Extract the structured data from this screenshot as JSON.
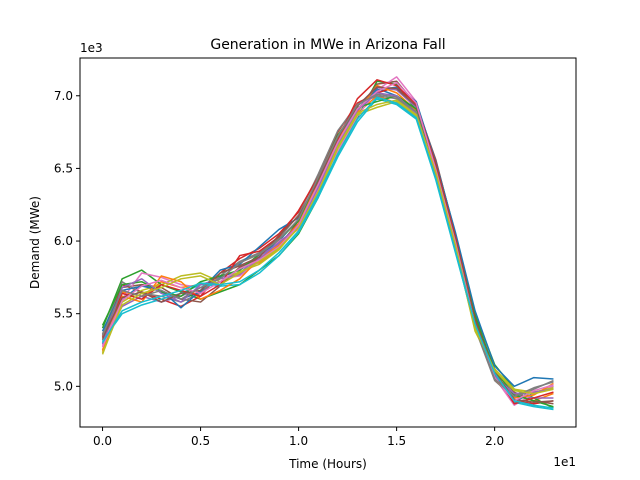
{
  "chart_data": {
    "type": "line",
    "title": "Generation in MWe in Arizona Fall",
    "xlabel": "Time (Hours)",
    "ylabel": "Demand (MWe)",
    "x_offset_label": "1e1",
    "y_offset_label": "1e3",
    "x_ticks": [
      0,
      5,
      10,
      15,
      20
    ],
    "x_tick_labels": [
      "0.0",
      "0.5",
      "1.0",
      "1.5",
      "2.0"
    ],
    "y_ticks": [
      5000,
      5500,
      6000,
      6500,
      7000
    ],
    "y_tick_labels": [
      "5.0",
      "5.5",
      "6.0",
      "6.5",
      "7.0"
    ],
    "xlim": [
      -1.15,
      24.15
    ],
    "ylim": [
      4720,
      7260
    ],
    "grid": false,
    "legend": "none",
    "x": [
      0,
      1,
      2,
      3,
      4,
      5,
      6,
      7,
      8,
      9,
      10,
      11,
      12,
      13,
      14,
      15,
      16,
      17,
      18,
      19,
      20,
      21,
      22,
      23
    ],
    "series": [
      {
        "color": "#1f77b4",
        "values": [
          5300,
          5600,
          5700,
          5650,
          5600,
          5650,
          5750,
          5800,
          5900,
          6000,
          6150,
          6400,
          6700,
          6900,
          7050,
          7000,
          6900,
          6500,
          6000,
          5400,
          5100,
          4900,
          4950,
          5000
        ]
      },
      {
        "color": "#ff7f0e",
        "values": [
          5250,
          5650,
          5620,
          5720,
          5680,
          5700,
          5700,
          5820,
          5850,
          5950,
          6100,
          6350,
          6650,
          6880,
          7000,
          6950,
          6850,
          6450,
          5950,
          5450,
          5050,
          4950,
          4900,
          4950
        ]
      },
      {
        "color": "#2ca02c",
        "values": [
          5400,
          5740,
          5800,
          5700,
          5650,
          5600,
          5650,
          5700,
          5800,
          5900,
          6050,
          6300,
          6600,
          6850,
          7100,
          7080,
          6900,
          6550,
          6050,
          5500,
          5150,
          4980,
          4920,
          4850
        ]
      },
      {
        "color": "#d62728",
        "values": [
          5350,
          5700,
          5650,
          5600,
          5550,
          5620,
          5780,
          5880,
          5950,
          6050,
          6200,
          6450,
          6750,
          6950,
          7020,
          7060,
          6950,
          6520,
          6020,
          5480,
          5100,
          4900,
          4880,
          4900
        ]
      },
      {
        "color": "#9467bd",
        "values": [
          5300,
          5550,
          5620,
          5580,
          5620,
          5680,
          5720,
          5780,
          5900,
          5980,
          6120,
          6380,
          6720,
          6930,
          7060,
          7040,
          6920,
          6480,
          5980,
          5420,
          5080,
          4940,
          4920,
          4920
        ]
      },
      {
        "color": "#8c564b",
        "values": [
          5320,
          5680,
          5700,
          5680,
          5600,
          5580,
          5690,
          5820,
          5880,
          5960,
          6140,
          6420,
          6680,
          6900,
          7080,
          7100,
          6940,
          6560,
          6040,
          5460,
          5120,
          4960,
          4900,
          4880
        ]
      },
      {
        "color": "#e377c2",
        "values": [
          5280,
          5600,
          5780,
          5750,
          5700,
          5680,
          5740,
          5760,
          5860,
          6000,
          6080,
          6360,
          6620,
          6860,
          7040,
          7130,
          6960,
          6500,
          6000,
          5440,
          5060,
          4870,
          4950,
          5000
        ]
      },
      {
        "color": "#7f7f7f",
        "values": [
          5360,
          5720,
          5640,
          5620,
          5580,
          5640,
          5760,
          5860,
          5920,
          6020,
          6180,
          6460,
          6760,
          6940,
          7000,
          6980,
          6880,
          6440,
          5940,
          5400,
          5040,
          4920,
          4980,
          5040
        ]
      },
      {
        "color": "#bcbd22",
        "values": [
          5220,
          5580,
          5660,
          5700,
          5760,
          5780,
          5720,
          5790,
          5840,
          5940,
          6100,
          6320,
          6640,
          6870,
          6920,
          6960,
          6860,
          6460,
          5960,
          5380,
          5120,
          4980,
          4960,
          4990
        ]
      },
      {
        "color": "#17becf",
        "values": [
          5310,
          5500,
          5560,
          5600,
          5640,
          5700,
          5690,
          5700,
          5780,
          5900,
          6060,
          6300,
          6580,
          6820,
          6980,
          6940,
          6840,
          6420,
          5920,
          5420,
          5080,
          4890,
          4860,
          4840
        ]
      },
      {
        "color": "#1f77b4",
        "values": [
          5380,
          5660,
          5690,
          5660,
          5540,
          5660,
          5800,
          5840,
          5960,
          6080,
          6160,
          6420,
          6690,
          6910,
          7040,
          7060,
          6960,
          6540,
          6060,
          5520,
          5140,
          5000,
          5060,
          5050
        ]
      },
      {
        "color": "#ff7f0e",
        "values": [
          5240,
          5620,
          5580,
          5760,
          5720,
          5600,
          5660,
          5740,
          5880,
          5970,
          6120,
          6400,
          6700,
          6890,
          7070,
          7020,
          6900,
          6480,
          6000,
          5440,
          5050,
          4920,
          4940,
          5020
        ]
      },
      {
        "color": "#2ca02c",
        "values": [
          5420,
          5700,
          5720,
          5650,
          5620,
          5720,
          5760,
          5800,
          5910,
          6010,
          6140,
          6430,
          6730,
          6920,
          6960,
          7000,
          6910,
          6500,
          6020,
          5480,
          5110,
          4940,
          4900,
          4860
        ]
      },
      {
        "color": "#d62728",
        "values": [
          5340,
          5640,
          5600,
          5700,
          5660,
          5620,
          5700,
          5900,
          5930,
          6030,
          6210,
          6440,
          6700,
          6980,
          7110,
          7070,
          6940,
          6530,
          6030,
          5460,
          5090,
          4880,
          4920,
          4960
        ]
      },
      {
        "color": "#9467bd",
        "values": [
          5290,
          5680,
          5740,
          5640,
          5580,
          5700,
          5740,
          5770,
          5880,
          5990,
          6100,
          6370,
          6660,
          6900,
          7020,
          7000,
          6880,
          6470,
          5990,
          5430,
          5070,
          4950,
          4960,
          4980
        ]
      },
      {
        "color": "#8c564b",
        "values": [
          5330,
          5610,
          5650,
          5580,
          5640,
          5660,
          5780,
          5830,
          5890,
          6040,
          6170,
          6410,
          6710,
          6930,
          7060,
          7050,
          6930,
          6510,
          6010,
          5450,
          5100,
          4910,
          4890,
          4900
        ]
      },
      {
        "color": "#e377c2",
        "values": [
          5270,
          5590,
          5690,
          5730,
          5680,
          5640,
          5720,
          5810,
          5870,
          5960,
          6110,
          6390,
          6680,
          6910,
          7030,
          7090,
          6950,
          6490,
          5990,
          5420,
          5060,
          4900,
          4970,
          5010
        ]
      },
      {
        "color": "#7f7f7f",
        "values": [
          5350,
          5660,
          5620,
          5660,
          5600,
          5680,
          5740,
          5850,
          5910,
          6010,
          6150,
          6440,
          6720,
          6940,
          7010,
          6990,
          6890,
          6460,
          5960,
          5410,
          5050,
          4930,
          4990,
          5030
        ]
      },
      {
        "color": "#bcbd22",
        "values": [
          5230,
          5560,
          5640,
          5680,
          5740,
          5760,
          5700,
          5780,
          5860,
          5950,
          6090,
          6340,
          6650,
          6880,
          6940,
          6970,
          6870,
          6470,
          5970,
          5400,
          5110,
          4970,
          4950,
          4980
        ]
      },
      {
        "color": "#17becf",
        "values": [
          5300,
          5520,
          5580,
          5620,
          5660,
          5710,
          5700,
          5720,
          5800,
          5920,
          6070,
          6320,
          6600,
          6840,
          6990,
          6950,
          6850,
          6430,
          5930,
          5430,
          5090,
          4900,
          4870,
          4850
        ]
      }
    ]
  }
}
